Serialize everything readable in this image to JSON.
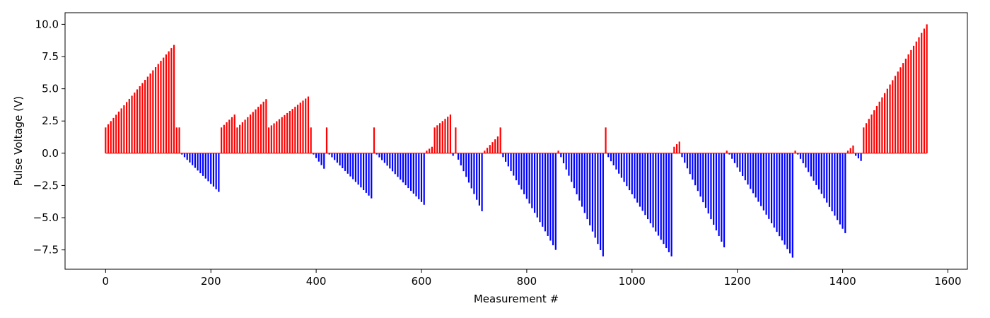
{
  "chart_data": {
    "type": "bar",
    "xlabel": "Measurement #",
    "ylabel": "Pulse Voltage (V)",
    "xlim": [
      -77,
      1637
    ],
    "ylim": [
      -9.0,
      10.9
    ],
    "xticks": [
      0,
      200,
      400,
      600,
      800,
      1000,
      1200,
      1400,
      1600
    ],
    "xtick_labels": [
      "0",
      "200",
      "400",
      "600",
      "800",
      "1000",
      "1200",
      "1400",
      "1600"
    ],
    "yticks": [
      -7.5,
      -5.0,
      -2.5,
      0.0,
      2.5,
      5.0,
      7.5,
      10.0
    ],
    "ytick_labels": [
      "−7.5",
      "−5.0",
      "−2.5",
      "0.0",
      "2.5",
      "5.0",
      "7.5",
      "10.0"
    ],
    "grid": false,
    "colors": {
      "positive": "#ff0000",
      "negative": "#0000ff",
      "frame": "#000000"
    },
    "bar_step": 5,
    "segments": [
      {
        "x0": 0,
        "x1": 130,
        "v0": 2.0,
        "v1": 8.4
      },
      {
        "x0": 135,
        "x1": 140,
        "v0": 2.0,
        "v1": 2.0
      },
      {
        "x0": 145,
        "x1": 215,
        "v0": -0.1,
        "v1": -3.0
      },
      {
        "x0": 220,
        "x1": 245,
        "v0": 2.0,
        "v1": 3.0
      },
      {
        "x0": 250,
        "x1": 305,
        "v0": 2.0,
        "v1": 4.2
      },
      {
        "x0": 310,
        "x1": 385,
        "v0": 2.0,
        "v1": 4.4
      },
      {
        "x0": 390,
        "x1": 390,
        "v0": 2.0,
        "v1": 2.0
      },
      {
        "x0": 395,
        "x1": 415,
        "v0": -0.1,
        "v1": -1.2
      },
      {
        "x0": 420,
        "x1": 420,
        "v0": 2.0,
        "v1": 2.0
      },
      {
        "x0": 425,
        "x1": 505,
        "v0": -0.1,
        "v1": -3.5
      },
      {
        "x0": 510,
        "x1": 510,
        "v0": 2.0,
        "v1": 2.0
      },
      {
        "x0": 515,
        "x1": 605,
        "v0": -0.1,
        "v1": -4.0
      },
      {
        "x0": 610,
        "x1": 620,
        "v0": 0.2,
        "v1": 0.5
      },
      {
        "x0": 625,
        "x1": 655,
        "v0": 2.0,
        "v1": 3.0
      },
      {
        "x0": 660,
        "x1": 660,
        "v0": -0.2,
        "v1": -0.2
      },
      {
        "x0": 665,
        "x1": 665,
        "v0": 2.0,
        "v1": 2.0
      },
      {
        "x0": 670,
        "x1": 715,
        "v0": -0.5,
        "v1": -4.5
      },
      {
        "x0": 720,
        "x1": 745,
        "v0": 0.2,
        "v1": 1.3
      },
      {
        "x0": 750,
        "x1": 750,
        "v0": 2.0,
        "v1": 2.0
      },
      {
        "x0": 755,
        "x1": 855,
        "v0": -0.3,
        "v1": -7.5
      },
      {
        "x0": 860,
        "x1": 860,
        "v0": 0.2,
        "v1": 0.2
      },
      {
        "x0": 865,
        "x1": 945,
        "v0": -0.3,
        "v1": -8.0
      },
      {
        "x0": 950,
        "x1": 950,
        "v0": 2.0,
        "v1": 2.0
      },
      {
        "x0": 955,
        "x1": 1075,
        "v0": -0.3,
        "v1": -8.0
      },
      {
        "x0": 1080,
        "x1": 1090,
        "v0": 0.5,
        "v1": 0.9
      },
      {
        "x0": 1095,
        "x1": 1175,
        "v0": -0.3,
        "v1": -7.3
      },
      {
        "x0": 1180,
        "x1": 1180,
        "v0": 0.2,
        "v1": 0.2
      },
      {
        "x0": 1185,
        "x1": 1305,
        "v0": -0.1,
        "v1": -8.1
      },
      {
        "x0": 1310,
        "x1": 1310,
        "v0": 0.2,
        "v1": 0.2
      },
      {
        "x0": 1315,
        "x1": 1405,
        "v0": -0.1,
        "v1": -6.2
      },
      {
        "x0": 1410,
        "x1": 1420,
        "v0": 0.2,
        "v1": 0.6
      },
      {
        "x0": 1425,
        "x1": 1435,
        "v0": -0.2,
        "v1": -0.6
      },
      {
        "x0": 1440,
        "x1": 1560,
        "v0": 2.0,
        "v1": 10.0
      }
    ]
  }
}
